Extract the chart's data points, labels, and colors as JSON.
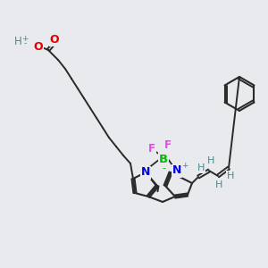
{
  "bg_color": "#e8eaed",
  "bond_color": "#2a2a2a",
  "atom_colors": {
    "O": "#e00000",
    "H": "#4a8a8c",
    "N": "#0000ee",
    "B": "#00bb00",
    "F": "#ee44ee",
    "plus": "#00aaaa",
    "minus": "#00bb00"
  },
  "figsize": [
    3.0,
    3.0
  ],
  "dpi": 100
}
